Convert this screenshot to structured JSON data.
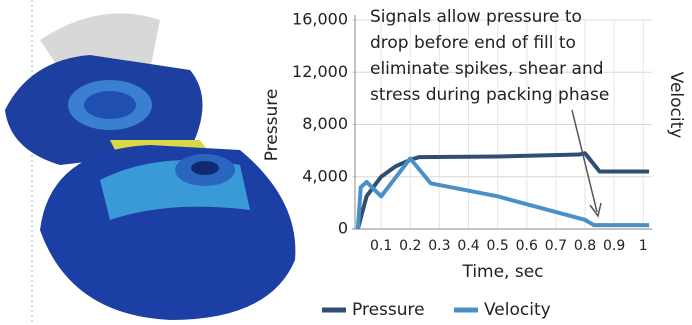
{
  "chart_data": {
    "type": "line",
    "annotation": [
      "Signals allow pressure to",
      "drop before end of fill to",
      "eliminate spikes, shear and",
      "stress during packing phase"
    ],
    "x_label": "Time, sec",
    "y_label": "Pressure",
    "y2_label": "Velocity",
    "xlim": [
      0,
      1.03
    ],
    "xticks": [
      0.1,
      0.2,
      0.3,
      0.4,
      0.5,
      0.6,
      0.7,
      0.8,
      0.9,
      1.0
    ],
    "ylim": [
      0,
      16000
    ],
    "yticks": [
      0,
      {
        "value": 4000,
        "label": "4,000"
      },
      {
        "value": 8000,
        "label": "8,000"
      },
      {
        "value": 12000,
        "label": "12,000"
      },
      {
        "value": 16000,
        "label": "16,000"
      }
    ],
    "grid": true,
    "legend": "bottom",
    "series": [
      {
        "name": "Pressure",
        "color": "#2e4f72",
        "x": [
          0.02,
          0.05,
          0.1,
          0.15,
          0.2,
          0.23,
          0.5,
          0.78,
          0.8,
          0.85,
          1.02
        ],
        "values": [
          0,
          2500,
          4000,
          4800,
          5300,
          5500,
          5550,
          5700,
          5800,
          4400,
          4400
        ]
      },
      {
        "name": "Velocity",
        "color": "#4a90c8",
        "x": [
          0.02,
          0.03,
          0.05,
          0.1,
          0.2,
          0.27,
          0.5,
          0.8,
          0.83,
          1.02
        ],
        "values": [
          0,
          3200,
          3600,
          2500,
          5400,
          3500,
          2500,
          700,
          300,
          300
        ]
      }
    ]
  }
}
